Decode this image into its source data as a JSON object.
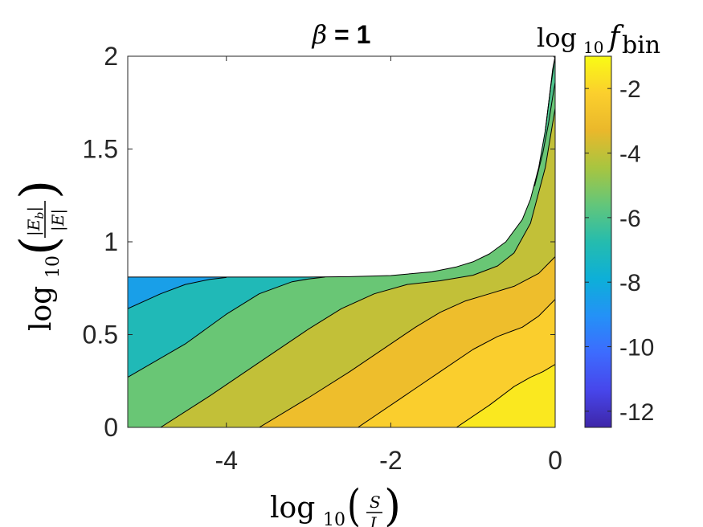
{
  "chart_data": {
    "type": "contour",
    "title": "β = 1",
    "title_greek": "β",
    "title_rest": " = 1",
    "xlabel": "log10(S/J)",
    "ylabel": "log10(|E_b|/|E|)",
    "colorbar_label": "log10 f_bin",
    "xlim": [
      -5.2,
      0
    ],
    "ylim": [
      0,
      2
    ],
    "xticks": [
      -4,
      -2,
      0
    ],
    "xtick_labels": [
      "-4",
      "-2",
      "0"
    ],
    "yticks": [
      0,
      0.5,
      1,
      1.5,
      2
    ],
    "ytick_labels": [
      "0",
      "0.5",
      "1",
      "1.5",
      "2"
    ],
    "clim": [
      -12.5,
      -1
    ],
    "cbar_ticks": [
      -12,
      -10,
      -8,
      -6,
      -4,
      -2
    ],
    "cbar_tick_labels": [
      "-12",
      "-10",
      "-8",
      "-6",
      "-4",
      "-2"
    ],
    "colormap": "parula",
    "boundary": {
      "description": "upper edge of the filled region",
      "x": [
        -5.2,
        -4.5,
        -4.0,
        -3.5,
        -3.0,
        -2.5,
        -2.0,
        -1.5,
        -1.2,
        -1.0,
        -0.8,
        -0.6,
        -0.4,
        -0.3,
        -0.2,
        -0.12,
        -0.05,
        0.0
      ],
      "y": [
        0.81,
        0.81,
        0.81,
        0.81,
        0.81,
        0.812,
        0.818,
        0.838,
        0.865,
        0.892,
        0.935,
        1.0,
        1.12,
        1.23,
        1.4,
        1.6,
        1.85,
        2.0
      ]
    },
    "level_lines": [
      {
        "x": [
          -5.2,
          -4.8,
          -4.5,
          -4.2,
          -4.0
        ],
        "y": [
          0.64,
          0.72,
          0.77,
          0.798,
          0.808
        ]
      },
      {
        "x": [
          -5.2,
          -4.5,
          -4.0,
          -3.6,
          -3.2,
          -3.0,
          -2.8
        ],
        "y": [
          0.27,
          0.45,
          0.61,
          0.72,
          0.785,
          0.8,
          0.81
        ]
      },
      {
        "x": [
          -4.8,
          -4.2,
          -3.6,
          -3.0,
          -2.6,
          -2.2,
          -1.8,
          -1.4,
          -1.0,
          -0.7,
          -0.5,
          -0.3,
          -0.12,
          0.0
        ],
        "y": [
          0.0,
          0.17,
          0.35,
          0.53,
          0.64,
          0.72,
          0.77,
          0.79,
          0.82,
          0.87,
          0.94,
          1.1,
          1.4,
          1.72
        ]
      },
      {
        "x": [
          -3.6,
          -3.0,
          -2.5,
          -2.0,
          -1.7,
          -1.4,
          -1.1,
          -0.8,
          -0.5,
          -0.2,
          0.0
        ],
        "y": [
          0.0,
          0.16,
          0.3,
          0.45,
          0.54,
          0.62,
          0.68,
          0.72,
          0.76,
          0.83,
          0.92
        ]
      },
      {
        "x": [
          -2.4,
          -1.9,
          -1.4,
          -1.0,
          -0.7,
          -0.4,
          -0.2,
          0.0
        ],
        "y": [
          0.0,
          0.15,
          0.3,
          0.42,
          0.49,
          0.54,
          0.6,
          0.69
        ]
      },
      {
        "x": [
          -1.2,
          -0.8,
          -0.5,
          -0.3,
          -0.15,
          0.0
        ],
        "y": [
          0.0,
          0.12,
          0.22,
          0.27,
          0.3,
          0.34
        ]
      },
      {
        "x": [
          -0.02,
          0.0
        ],
        "y": [
          2.0,
          1.99
        ]
      },
      {
        "x": [
          -0.12,
          -0.07,
          -0.03,
          0.0
        ],
        "y": [
          1.6,
          1.78,
          1.93,
          2.0
        ]
      },
      {
        "x": [
          -0.25,
          -0.15,
          -0.08,
          -0.03,
          0.0
        ],
        "y": [
          1.3,
          1.48,
          1.64,
          1.78,
          1.86
        ]
      }
    ],
    "band_levels": [
      -8.5,
      -7,
      -5.5,
      -4,
      -3,
      -2.2,
      -1.5,
      -7.5,
      -6
    ],
    "band_order_note": "bands enumerate from top-left to bottom-right: -8.5 above line 0, -7 between lines 0/1, -5.5 between 1/2, -4 between 2/3, -3 between 3/4, -2.2 between 4/5, -1.5 below 5; steep-region slivers -7.5, -6"
  }
}
